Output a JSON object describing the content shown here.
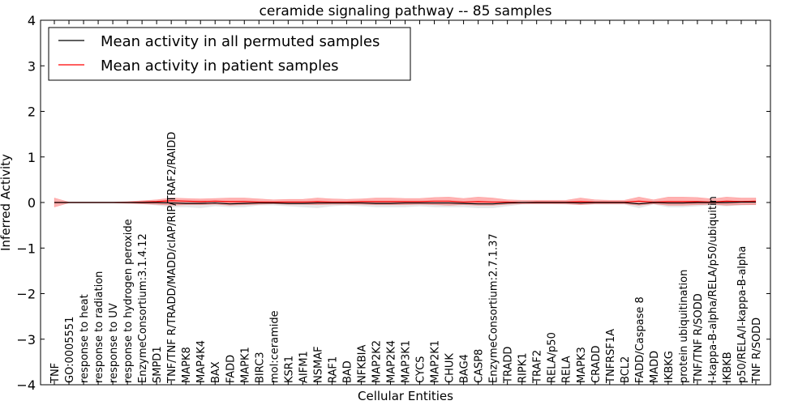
{
  "chart_data": {
    "type": "line",
    "title": "ceramide signaling pathway -- 85 samples",
    "xlabel": "Cellular Entities",
    "ylabel": "Inferred Activity",
    "ylim": [
      -4,
      4
    ],
    "yticks": [
      "−4",
      "−3",
      "−2",
      "−1",
      "0",
      "1",
      "2",
      "3",
      "4"
    ],
    "legend_position": "top-left",
    "categories": [
      "TNF",
      "GO:0005551",
      "response to heat",
      "response to radiation",
      "response to UV",
      "response to hydrogen peroxide",
      "EnzymeConsortium:3.1.4.12",
      "SMPD1",
      "TNF/TNF R/TRADD/MADD/cIAP/RIP/TRAF2/RAIDD",
      "MAPK8",
      "MAP4K4",
      "BAX",
      "FADD",
      "MAPK1",
      "BIRC3",
      "mol:ceramide",
      "KSR1",
      "AIFM1",
      "NSMAF",
      "RAF1",
      "BAD",
      "NFKBIA",
      "MAP2K2",
      "MAP2K4",
      "MAP3K1",
      "CYCS",
      "MAP2K1",
      "CHUK",
      "BAG4",
      "CASP8",
      "EnzymeConsortium:2.7.1.37",
      "TRADD",
      "RIPK1",
      "TRAF2",
      "RELA/p50",
      "RELA",
      "MAPK3",
      "CRADD",
      "TNFRSF1A",
      "BCL2",
      "FADD/Caspase 8",
      "MADD",
      "IKBKG",
      "protein ubiquitination",
      "TNF/TNF R/SODD",
      "I-kappa-B-alpha/RELA/p50/ubiquitin",
      "IKBKB",
      "p50/RELA/I-kappa-B-alpha",
      "TNF R/SODD"
    ],
    "series": [
      {
        "name": "Mean activity in all permuted samples",
        "color": "#000000",
        "values": [
          0,
          0,
          0,
          0,
          0,
          0,
          0,
          0,
          -0.01,
          -0.02,
          -0.02,
          -0.01,
          -0.03,
          -0.02,
          -0.01,
          -0.01,
          -0.02,
          -0.02,
          -0.01,
          -0.01,
          -0.01,
          -0.01,
          -0.02,
          -0.02,
          -0.01,
          -0.01,
          -0.01,
          -0.01,
          -0.02,
          -0.03,
          -0.03,
          -0.01,
          0,
          0,
          0,
          0,
          -0.01,
          0,
          0,
          0,
          -0.03,
          0,
          -0.01,
          -0.01,
          0,
          0,
          0,
          0.01,
          0.01
        ],
        "band_upper": [
          0,
          0,
          0,
          0,
          0,
          0.01,
          0.02,
          0.03,
          0.05,
          0.04,
          0.04,
          0.03,
          0.03,
          0.04,
          0.03,
          0.02,
          0.03,
          0.03,
          0.02,
          0.02,
          0.02,
          0.03,
          0.03,
          0.03,
          0.03,
          0.02,
          0.03,
          0.03,
          0.02,
          0.02,
          0.02,
          0.02,
          0.01,
          0.01,
          0.01,
          0.01,
          0.02,
          0.01,
          0.01,
          0.01,
          0.02,
          0.01,
          0.02,
          0.02,
          0.02,
          0.02,
          0.02,
          0.03,
          0.03
        ],
        "band_lower": [
          0,
          0,
          0,
          0,
          0,
          -0.01,
          -0.03,
          -0.06,
          -0.1,
          -0.1,
          -0.12,
          -0.08,
          -0.1,
          -0.1,
          -0.06,
          -0.06,
          -0.08,
          -0.1,
          -0.12,
          -0.08,
          -0.06,
          -0.08,
          -0.1,
          -0.1,
          -0.1,
          -0.08,
          -0.1,
          -0.1,
          -0.1,
          -0.12,
          -0.12,
          -0.08,
          -0.04,
          -0.03,
          -0.03,
          -0.04,
          -0.05,
          -0.04,
          -0.04,
          -0.04,
          -0.12,
          -0.04,
          -0.1,
          -0.1,
          -0.08,
          -0.06,
          -0.08,
          -0.06,
          -0.05
        ]
      },
      {
        "name": "Mean activity in patient samples",
        "color": "#ff0000",
        "values": [
          0,
          0,
          0,
          0,
          0,
          0,
          0.01,
          0.02,
          0.04,
          0.03,
          0.02,
          0.03,
          0.02,
          0.02,
          0.01,
          0.01,
          0.01,
          0.01,
          0.02,
          0.01,
          0.01,
          0.02,
          0.02,
          0.02,
          0.02,
          0.02,
          0.03,
          0.03,
          0.01,
          0.02,
          0.01,
          0.01,
          0,
          0.01,
          0.01,
          0.01,
          0.02,
          0.01,
          0.01,
          0.01,
          0.03,
          0.01,
          0.02,
          0.02,
          0.02,
          0.01,
          0.03,
          0.02,
          0.03
        ],
        "band_upper": [
          0.1,
          0.01,
          0.01,
          0.01,
          0.01,
          0.02,
          0.04,
          0.06,
          0.1,
          0.09,
          0.08,
          0.09,
          0.1,
          0.1,
          0.08,
          0.06,
          0.07,
          0.07,
          0.1,
          0.08,
          0.07,
          0.08,
          0.1,
          0.1,
          0.09,
          0.09,
          0.11,
          0.12,
          0.09,
          0.12,
          0.1,
          0.06,
          0.05,
          0.05,
          0.05,
          0.05,
          0.1,
          0.06,
          0.05,
          0.05,
          0.12,
          0.06,
          0.12,
          0.12,
          0.11,
          0.08,
          0.12,
          0.1,
          0.1
        ],
        "band_lower": [
          -0.1,
          -0.01,
          -0.01,
          -0.01,
          -0.01,
          -0.02,
          -0.03,
          -0.04,
          -0.06,
          -0.05,
          -0.05,
          -0.04,
          -0.06,
          -0.05,
          -0.04,
          -0.03,
          -0.04,
          -0.04,
          -0.05,
          -0.04,
          -0.04,
          -0.04,
          -0.05,
          -0.05,
          -0.05,
          -0.04,
          -0.05,
          -0.06,
          -0.05,
          -0.06,
          -0.06,
          -0.04,
          -0.03,
          -0.03,
          -0.03,
          -0.03,
          -0.05,
          -0.03,
          -0.03,
          -0.03,
          -0.06,
          -0.03,
          -0.06,
          -0.06,
          -0.05,
          -0.04,
          -0.06,
          -0.05,
          -0.05
        ]
      }
    ]
  }
}
